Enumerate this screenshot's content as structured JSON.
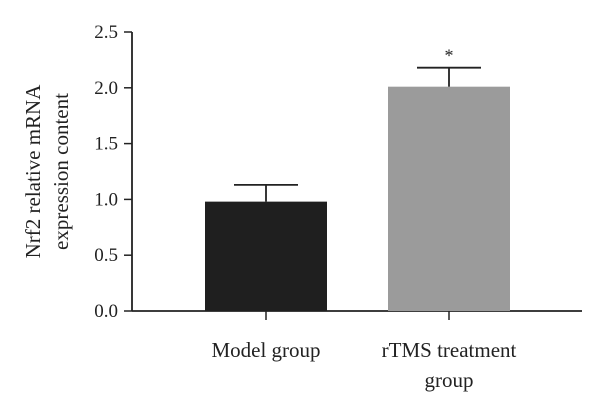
{
  "chart_data": {
    "type": "bar",
    "categories": [
      [
        "Model group"
      ],
      [
        "rTMS treatment",
        "group"
      ]
    ],
    "values": [
      0.98,
      2.01
    ],
    "errors": [
      0.15,
      0.17
    ],
    "bar_colors": [
      "#1f1f1f",
      "#9b9b9b"
    ],
    "significance": [
      "",
      "*"
    ],
    "ylabel": [
      "Nrf2 relative mRNA",
      "expression content"
    ],
    "ylim": [
      0,
      2.5
    ],
    "yticks": [
      0.0,
      0.5,
      1.0,
      1.5,
      2.0,
      2.5
    ],
    "ytick_labels": [
      "0.0",
      "0.5",
      "1.0",
      "1.5",
      "2.0",
      "2.5"
    ],
    "grid": false,
    "legend": "none"
  }
}
